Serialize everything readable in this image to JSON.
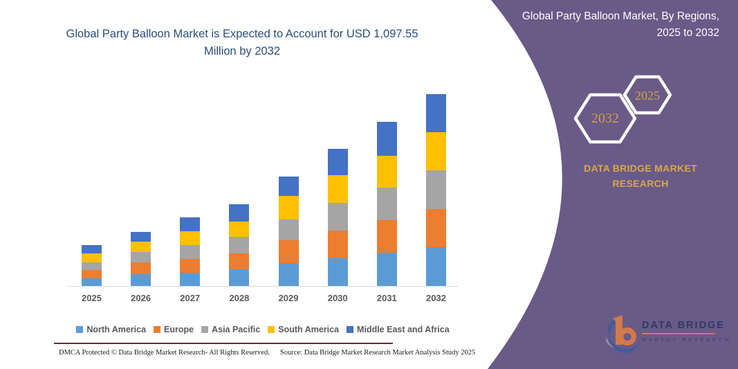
{
  "main": {
    "title": "Global Party Balloon Market is Expected to Account for USD 1,097.55 Million by 2032"
  },
  "right_panel": {
    "heading": "Global Party Balloon Market, By Regions, 2025 to 2032",
    "badge_back": "2032",
    "badge_front": "2025",
    "brand_text": "DATA BRIDGE MARKET RESEARCH",
    "logo_brand": "DATA BRIDGE",
    "logo_sub": "MARKET RESEARCH",
    "panel_color": "#695A87",
    "accent_gold": "#D2A23C"
  },
  "footer": {
    "left": "DMCA Protected © Data Bridge Market Research-  All Rights Reserved.",
    "right": "Source: Data Bridge Market Research  Market Analysis Study 2025"
  },
  "chart_data": {
    "type": "bar",
    "stacked": true,
    "title": "Global Party Balloon Market is Expected to Account for USD 1,097.55 Million by 2032",
    "unit": "USD Million",
    "categories": [
      "2025",
      "2026",
      "2027",
      "2028",
      "2029",
      "2030",
      "2031",
      "2032"
    ],
    "series": [
      {
        "name": "North America",
        "color": "#5B9BD5",
        "values": [
          44,
          66,
          75,
          95,
          132,
          157,
          191,
          221
        ]
      },
      {
        "name": "Europe",
        "color": "#ED7D31",
        "values": [
          46,
          69,
          79,
          90,
          128,
          159,
          187,
          221
        ]
      },
      {
        "name": "Asia Pacific",
        "color": "#A5A5A5",
        "values": [
          46,
          59,
          79,
          98,
          122,
          159,
          185,
          222
        ]
      },
      {
        "name": "South America",
        "color": "#FFC000",
        "values": [
          49,
          59,
          79,
          88,
          134,
          159,
          185,
          218
        ]
      },
      {
        "name": "Middle East and Africa",
        "color": "#4472C4",
        "values": [
          50,
          57,
          82,
          99,
          112,
          153,
          194,
          216
        ]
      }
    ],
    "ylim": [
      0,
      1150
    ],
    "grid": false,
    "legend_position": "bottom"
  }
}
